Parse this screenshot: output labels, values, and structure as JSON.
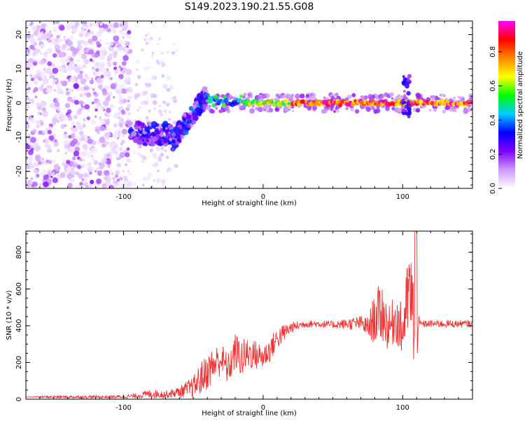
{
  "title": "S149.2023.190.21.55.G08",
  "chart_data": [
    {
      "type": "heatmap",
      "xlabel": "Height of straight line (km)",
      "ylabel": "Frequency (Hz)",
      "xlim": [
        -170,
        150
      ],
      "ylim": [
        -25,
        24
      ],
      "xticks": [
        "-100",
        "0",
        "100"
      ],
      "xtick_values": [
        -100,
        0,
        100
      ],
      "yticks": [
        "-20",
        "-10",
        "0",
        "10",
        "20"
      ],
      "ytick_values": [
        -20,
        -10,
        0,
        10,
        20
      ],
      "colorbar": {
        "label": "Normalized spectral amplitude",
        "ticks": [
          "0.0",
          "0.2",
          "0.4",
          "0.6",
          "0.8"
        ],
        "tick_values": [
          0.0,
          0.2,
          0.4,
          0.6,
          0.8
        ],
        "range": [
          0,
          0.98
        ],
        "colors": [
          "#ffffff",
          "#cc99ff",
          "#8000ff",
          "#0000ff",
          "#00ccff",
          "#00ff00",
          "#ffff00",
          "#ff8800",
          "#ff0000",
          "#ff00ff"
        ]
      },
      "regions": [
        {
          "x_range": [
            -170,
            -95
          ],
          "freq_range": [
            -25,
            24
          ],
          "amplitude_range": [
            0.02,
            0.15
          ],
          "pattern": "noise"
        },
        {
          "x_range": [
            -95,
            -65
          ],
          "freq_range": [
            -12,
            -6
          ],
          "amplitude_range": [
            0.1,
            0.35
          ],
          "pattern": "blobs"
        },
        {
          "x_range": [
            -65,
            -40
          ],
          "freq_range": [
            -11,
            7
          ],
          "amplitude_range": [
            0.1,
            0.4
          ],
          "pattern": "rising"
        },
        {
          "x_range": [
            -40,
            150
          ],
          "freq_range": [
            -2,
            2
          ],
          "amplitude_range": [
            0.3,
            0.95
          ],
          "pattern": "line"
        }
      ]
    },
    {
      "type": "line",
      "xlabel": "Height of straight line (km)",
      "ylabel": "SNR (10 * v/v)",
      "xlim": [
        -170,
        150
      ],
      "ylim": [
        0,
        915
      ],
      "xticks": [
        "-100",
        "0",
        "100"
      ],
      "xtick_values": [
        -100,
        0,
        100
      ],
      "yticks": [
        "0",
        "200",
        "400",
        "600",
        "800"
      ],
      "ytick_values": [
        0,
        200,
        400,
        600,
        800
      ],
      "color": "#ee3333",
      "series": [
        {
          "x": [
            -170,
            -150,
            -130,
            -110,
            -100,
            -90,
            -85,
            -80,
            -70,
            -60,
            -50,
            -45,
            -40,
            -35,
            -30,
            -25,
            -20,
            -15,
            -10,
            -5,
            0,
            5,
            10,
            15,
            20,
            25,
            30,
            40,
            50,
            60,
            70,
            75,
            80,
            85,
            90,
            95,
            100,
            102,
            105,
            108,
            110,
            112,
            120,
            130,
            140,
            150
          ],
          "y": [
            12,
            12,
            12,
            12,
            14,
            18,
            25,
            30,
            25,
            40,
            65,
            110,
            150,
            190,
            220,
            160,
            260,
            220,
            250,
            240,
            230,
            270,
            330,
            360,
            390,
            400,
            410,
            410,
            405,
            410,
            415,
            390,
            440,
            480,
            380,
            450,
            360,
            480,
            600,
            420,
            380,
            410,
            410,
            410,
            410,
            410
          ],
          "noise": [
            0,
            8,
            8,
            8,
            10,
            14,
            20,
            24,
            20,
            30,
            60,
            90,
            100,
            100,
            90,
            90,
            100,
            110,
            90,
            80,
            70,
            70,
            60,
            50,
            30,
            25,
            20,
            20,
            20,
            30,
            40,
            60,
            140,
            170,
            120,
            140,
            150,
            180,
            250,
            250,
            200,
            20,
            20,
            20,
            20,
            20
          ]
        }
      ]
    }
  ]
}
